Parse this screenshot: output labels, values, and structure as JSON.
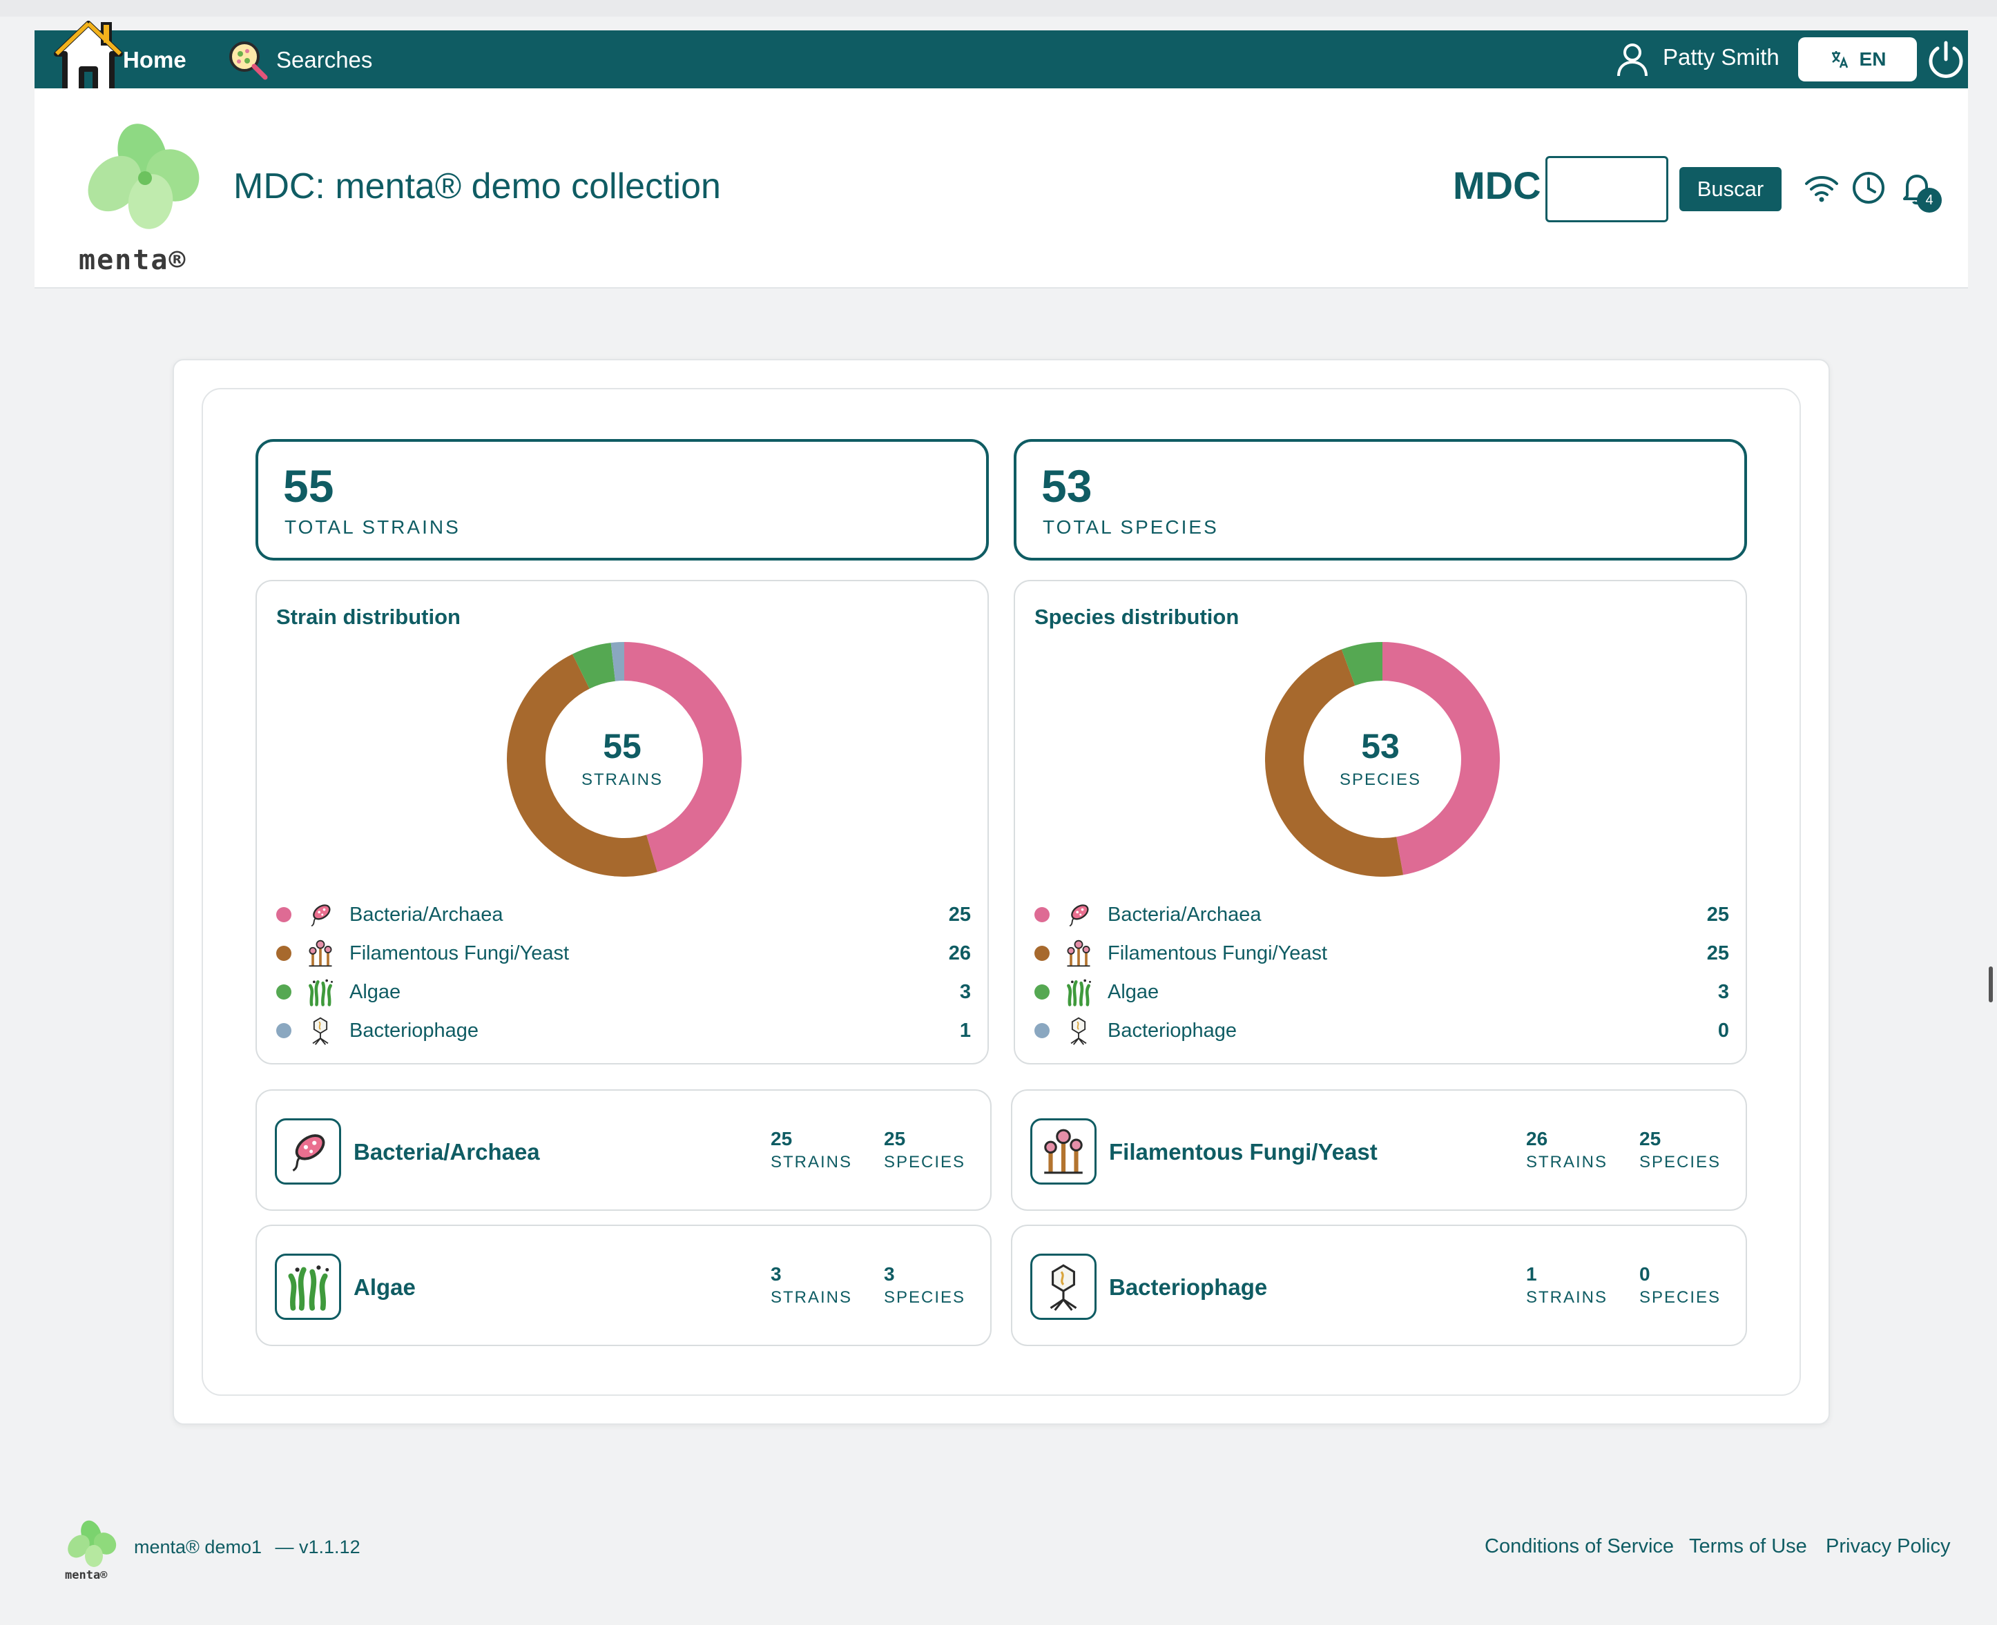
{
  "nav": {
    "home_label": "Home",
    "searches_label": "Searches",
    "user_name": "Patty Smith",
    "language": "EN"
  },
  "header": {
    "logo_text": "menta®",
    "title": "MDC: menta® demo collection",
    "collection_code": "MDC",
    "search_value": "",
    "search_button": "Buscar",
    "notification_count": "4"
  },
  "totals": [
    {
      "value": "55",
      "label": "TOTAL STRAINS"
    },
    {
      "value": "53",
      "label": "TOTAL SPECIES"
    }
  ],
  "distributions": [
    {
      "title": "Strain distribution",
      "center_value": "55",
      "center_label": "STRAINS",
      "items": [
        {
          "label": "Bacteria/Archaea",
          "value": "25",
          "color": "#de6b94",
          "icon": "bacteria-icon"
        },
        {
          "label": "Filamentous Fungi/Yeast",
          "value": "26",
          "color": "#a7692d",
          "icon": "fungi-icon"
        },
        {
          "label": "Algae",
          "value": "3",
          "color": "#55a852",
          "icon": "algae-icon"
        },
        {
          "label": "Bacteriophage",
          "value": "1",
          "color": "#8aa7c0",
          "icon": "bacteriophage-icon"
        }
      ]
    },
    {
      "title": "Species distribution",
      "center_value": "53",
      "center_label": "SPECIES",
      "items": [
        {
          "label": "Bacteria/Archaea",
          "value": "25",
          "color": "#de6b94",
          "icon": "bacteria-icon"
        },
        {
          "label": "Filamentous Fungi/Yeast",
          "value": "25",
          "color": "#a7692d",
          "icon": "fungi-icon"
        },
        {
          "label": "Algae",
          "value": "3",
          "color": "#55a852",
          "icon": "algae-icon"
        },
        {
          "label": "Bacteriophage",
          "value": "0",
          "color": "#8aa7c0",
          "icon": "bacteriophage-icon"
        }
      ]
    }
  ],
  "categories": [
    {
      "name": "Bacteria/Archaea",
      "strains": "25",
      "species": "25",
      "strains_label": "STRAINS",
      "species_label": "SPECIES",
      "icon": "bacteria-icon"
    },
    {
      "name": "Filamentous Fungi/Yeast",
      "strains": "26",
      "species": "25",
      "strains_label": "STRAINS",
      "species_label": "SPECIES",
      "icon": "fungi-icon"
    },
    {
      "name": "Algae",
      "strains": "3",
      "species": "3",
      "strains_label": "STRAINS",
      "species_label": "SPECIES",
      "icon": "algae-icon"
    },
    {
      "name": "Bacteriophage",
      "strains": "1",
      "species": "0",
      "strains_label": "STRAINS",
      "species_label": "SPECIES",
      "icon": "bacteriophage-icon"
    }
  ],
  "footer": {
    "app": "menta® demo1",
    "version": "— v1.1.12",
    "links": [
      "Conditions of Service",
      "Terms of Use",
      "Privacy Policy"
    ]
  },
  "colors": {
    "brand": "#0f5c63",
    "bacteria": "#de6b94",
    "fungi": "#a7692d",
    "algae": "#55a852",
    "bacteriophage": "#8aa7c0"
  }
}
